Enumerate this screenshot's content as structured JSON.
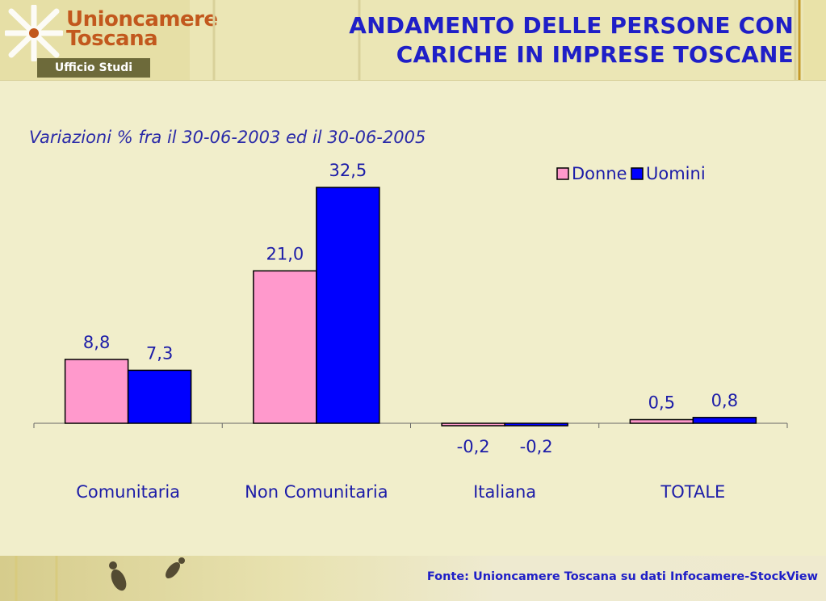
{
  "header": {
    "logo_line1": "Unioncamere",
    "logo_line2": "Toscana",
    "office_label": "Ufficio Studi",
    "title_line1": "ANDAMENTO DELLE PERSONE CON",
    "title_line2": "CARICHE IN IMPRESE TOSCANE"
  },
  "footer": {
    "source": "Fonte: Unioncamere Toscana su dati Infocamere-StockView"
  },
  "chart_data": {
    "type": "bar",
    "title": "",
    "subtitle": "Variazioni % fra il 30-06-2003 ed il 30-06-2005",
    "categories": [
      "Comunitaria",
      "Non Comunitaria",
      "Italiana",
      "TOTALE"
    ],
    "series": [
      {
        "name": "Donne",
        "values": [
          8.8,
          21.0,
          -0.2,
          0.5
        ],
        "labels": [
          "8,8",
          "21,0",
          "-0,2",
          "0,5"
        ],
        "color": "#ff99cc"
      },
      {
        "name": "Uomini",
        "values": [
          7.3,
          32.5,
          -0.2,
          0.8
        ],
        "labels": [
          "7,3",
          "32,5",
          "-0,2",
          "0,8"
        ],
        "color": "#0000ff"
      }
    ],
    "ylim": [
      -0.2,
      32.5
    ],
    "grid": false,
    "legend": "top-right",
    "xlabel": "",
    "ylabel": ""
  },
  "colors": {
    "title": "#1f1fc7",
    "text": "#1c1ca8",
    "logo": "#c2581d",
    "background": "#f1eecb"
  }
}
